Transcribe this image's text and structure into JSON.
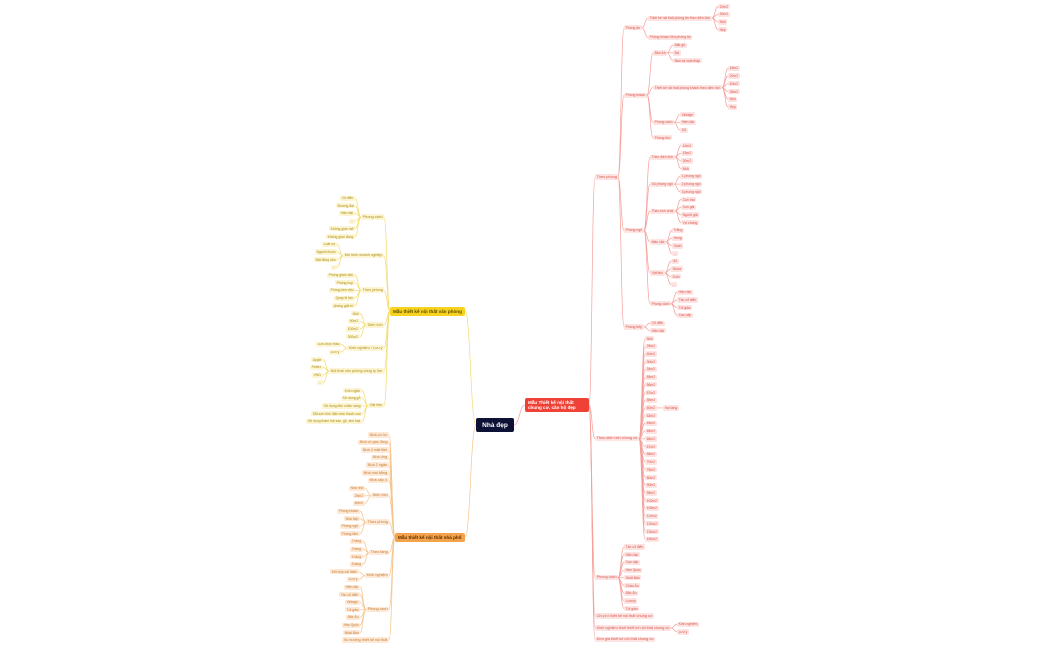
{
  "center": {
    "label": "Nhà đẹp"
  },
  "colors": {
    "red": "#ef4136",
    "yellow": "#f7d21e",
    "orange": "#f5a24c",
    "center": "#0e1136"
  },
  "branches": [
    {
      "label": "Mẫu Thiết kế nội thất chung cư, căn hộ đẹp",
      "color": "red",
      "children": [
        {
          "label": "Theo phòng",
          "children": [
            {
              "label": "Phòng ăn",
              "children": [
                {
                  "label": "Thiết kế nội thất phòng ăn theo diện tích",
                  "children": [
                    {
                      "label": "20m2"
                    },
                    {
                      "label": "30m2"
                    },
                    {
                      "label": "Nhỏ"
                    },
                    {
                      "label": "Hẹp"
                    }
                  ]
                },
                {
                  "label": "Phòng khách liền phòng ăn"
                }
              ]
            },
            {
              "label": "Phòng khách",
              "children": [
                {
                  "label": "Bàn trà",
                  "children": [
                    {
                      "label": "Mặt gỗ"
                    },
                    {
                      "label": "Đá"
                    },
                    {
                      "label": "Bàn và sofa thấp"
                    }
                  ]
                },
                {
                  "label": "Thiết kế nội thất phòng khách theo diện tích",
                  "children": [
                    {
                      "label": "18m2"
                    },
                    {
                      "label": "20m2"
                    },
                    {
                      "label": "40m2"
                    },
                    {
                      "label": "35m2"
                    },
                    {
                      "label": "Nhỏ"
                    },
                    {
                      "label": "Hẹp"
                    }
                  ]
                },
                {
                  "label": "Phong cách",
                  "children": [
                    {
                      "label": "Vintage"
                    },
                    {
                      "label": "Hiện đại"
                    },
                    {
                      "label": "Gỗ"
                    }
                  ]
                },
                {
                  "label": "Phòng thờ"
                }
              ]
            },
            {
              "label": "Phòng ngủ",
              "children": [
                {
                  "label": "Theo diện tích",
                  "children": [
                    {
                      "label": "10m2"
                    },
                    {
                      "label": "15m2"
                    },
                    {
                      "label": "20m2"
                    },
                    {
                      "label": "Nhỏ"
                    }
                  ]
                },
                {
                  "label": "Số phòng ngủ",
                  "children": [
                    {
                      "label": "1 phòng ngủ"
                    },
                    {
                      "label": "2 phòng ngủ"
                    },
                    {
                      "label": "3 phòng ngủ"
                    }
                  ]
                },
                {
                  "label": "Theo tính chất",
                  "children": [
                    {
                      "label": "Con trai"
                    },
                    {
                      "label": "Con gái"
                    },
                    {
                      "label": "Người già"
                    },
                    {
                      "label": "Vợ chồng"
                    }
                  ]
                },
                {
                  "label": "Màu sắc",
                  "children": [
                    {
                      "label": "Trắng"
                    },
                    {
                      "label": "Hồng"
                    },
                    {
                      "label": "Xanh"
                    },
                    {
                      "label": "..."
                    }
                  ]
                },
                {
                  "label": "Vật liệu",
                  "children": [
                    {
                      "label": "Gỗ"
                    },
                    {
                      "label": "Nhựa"
                    },
                    {
                      "label": "Kính"
                    },
                    {
                      "label": "..."
                    }
                  ]
                },
                {
                  "label": "Phong cách",
                  "children": [
                    {
                      "label": "Hiện đại"
                    },
                    {
                      "label": "Tân cổ điển"
                    },
                    {
                      "label": "Tối giản"
                    },
                    {
                      "label": "Cao cấp"
                    }
                  ]
                }
              ]
            },
            {
              "label": "Phòng bếp",
              "children": [
                {
                  "label": "Cổ điển"
                },
                {
                  "label": "Hiện đại"
                }
              ]
            }
          ]
        },
        {
          "label": "Theo diện tích chung cư",
          "children": [
            {
              "label": "Nhỏ"
            },
            {
              "label": "25m2"
            },
            {
              "label": "40m2"
            },
            {
              "label": "30m2"
            },
            {
              "label": "34m2"
            },
            {
              "label": "55m2"
            },
            {
              "label": "56m2"
            },
            {
              "label": "57m2"
            },
            {
              "label": "58m2"
            },
            {
              "label": "60m2",
              "children": [
                {
                  "label": "Hai tầng"
                }
              ]
            },
            {
              "label": "62m2"
            },
            {
              "label": "63m2"
            },
            {
              "label": "65m2"
            },
            {
              "label": "66m2"
            },
            {
              "label": "67m2"
            },
            {
              "label": "68m2"
            },
            {
              "label": "70m2"
            },
            {
              "label": "75m2"
            },
            {
              "label": "80m2"
            },
            {
              "label": "90m2"
            },
            {
              "label": "95m2"
            },
            {
              "label": "100m2"
            },
            {
              "label": "105m2"
            },
            {
              "label": "110m2"
            },
            {
              "label": "120m2"
            },
            {
              "label": "130m2"
            },
            {
              "label": "150m2"
            }
          ]
        },
        {
          "label": "Phong cách",
          "children": [
            {
              "label": "Tân cổ điển"
            },
            {
              "label": "Hiện đại"
            },
            {
              "label": "Cao cấp"
            },
            {
              "label": "Hàn Quốc"
            },
            {
              "label": "Nhật Bản"
            },
            {
              "label": "Châu Âu"
            },
            {
              "label": "Bắc Âu"
            },
            {
              "label": "Luxury"
            },
            {
              "label": "Tối giản"
            }
          ]
        },
        {
          "label": "Chi phí thiết kế nội thất chung cư"
        },
        {
          "label": "Kinh nghiệm thuê thiết kế nội thất chung cư",
          "children": [
            {
              "label": "Kinh nghiệm"
            },
            {
              "label": "Lưu ý"
            }
          ]
        },
        {
          "label": "Đơn giá thiết kế nội thất chung cư"
        }
      ]
    },
    {
      "label": "Mẫu thiết kế nội thất văn phòng",
      "color": "yellow",
      "children": [
        {
          "label": "Phong cách",
          "children": [
            {
              "label": "Cổ điển"
            },
            {
              "label": "Đương đại"
            },
            {
              "label": "Hiện đại"
            },
            {
              "label": "..."
            },
            {
              "label": "Không gian mở"
            },
            {
              "label": "Không gian đóng"
            }
          ]
        },
        {
          "label": "Mô hình doanh nghiệp",
          "children": [
            {
              "label": "Luật sư"
            },
            {
              "label": "Ngành thuốc"
            },
            {
              "label": "Bất động sản"
            },
            {
              "label": "..."
            }
          ]
        },
        {
          "label": "Theo phòng",
          "children": [
            {
              "label": "Phòng giám đốc"
            },
            {
              "label": "Phòng họp"
            },
            {
              "label": "Phòng làm việc"
            },
            {
              "label": "Quầy lễ tân"
            },
            {
              "label": "phòng giải trí"
            }
          ]
        },
        {
          "label": "Diện tích",
          "children": [
            {
              "label": "Nhỏ"
            },
            {
              "label": "50m2"
            },
            {
              "label": "100m2"
            },
            {
              "label": "300m2"
            }
          ]
        },
        {
          "label": "Kinh nghiệm / Lưu ý",
          "children": [
            {
              "label": "Lựa chọn thầu"
            },
            {
              "label": "Lưu ý"
            }
          ]
        },
        {
          "label": "Nội thất văn phòng công ty lớn",
          "children": [
            {
              "label": "Apple"
            },
            {
              "label": "Fedex"
            },
            {
              "label": "VNG"
            },
            {
              "label": "..."
            }
          ]
        },
        {
          "label": "Vật liệu",
          "children": [
            {
              "label": "Kính ngăn"
            },
            {
              "label": "Sử dụng gỗ"
            },
            {
              "label": "Sử dụng đèn chiếu sáng"
            },
            {
              "label": "Sắt sơn tĩnh điện trần thạch cao"
            },
            {
              "label": "Sử dụng thảm trải sàn, gỗ, kim loại"
            }
          ]
        }
      ]
    },
    {
      "label": "Mẫu thiết kế nội thất nhà phố",
      "color": "orange",
      "children": [
        {
          "label": "Nhà có hồ"
        },
        {
          "label": "Nhà có gác lửng"
        },
        {
          "label": "Nhà 4 mặt tiền"
        },
        {
          "label": "Nhà ống"
        },
        {
          "label": "Nhà 2 ngăn"
        },
        {
          "label": "Nhà mái bằng"
        },
        {
          "label": "Nhà cấp 4"
        },
        {
          "label": "Diện tích",
          "children": [
            {
              "label": "Nhà nhỏ"
            },
            {
              "label": "25m2"
            },
            {
              "label": "60m2"
            }
          ]
        },
        {
          "label": "Theo phòng",
          "children": [
            {
              "label": "Phòng khách"
            },
            {
              "label": "Nhà bếp"
            },
            {
              "label": "Phòng ngủ"
            },
            {
              "label": "Phòng tắm"
            }
          ]
        },
        {
          "label": "Theo tầng",
          "children": [
            {
              "label": "2 tầng"
            },
            {
              "label": "3 tầng"
            },
            {
              "label": "4 tầng"
            },
            {
              "label": "5 tầng"
            }
          ]
        },
        {
          "label": "Kinh nghiệm",
          "children": [
            {
              "label": "Kết hợp cải thiện"
            },
            {
              "label": "Lưu ý"
            }
          ]
        },
        {
          "label": "Phong cách",
          "children": [
            {
              "label": "Hiện đại"
            },
            {
              "label": "Tân cổ điển"
            },
            {
              "label": "Vintage"
            },
            {
              "label": "Tối giản"
            },
            {
              "label": "Bắc Âu"
            },
            {
              "label": "Hàn Quốc"
            },
            {
              "label": "Nhật Bản"
            }
          ]
        },
        {
          "label": "Xu hướng thiết kế nội thất"
        }
      ]
    }
  ]
}
